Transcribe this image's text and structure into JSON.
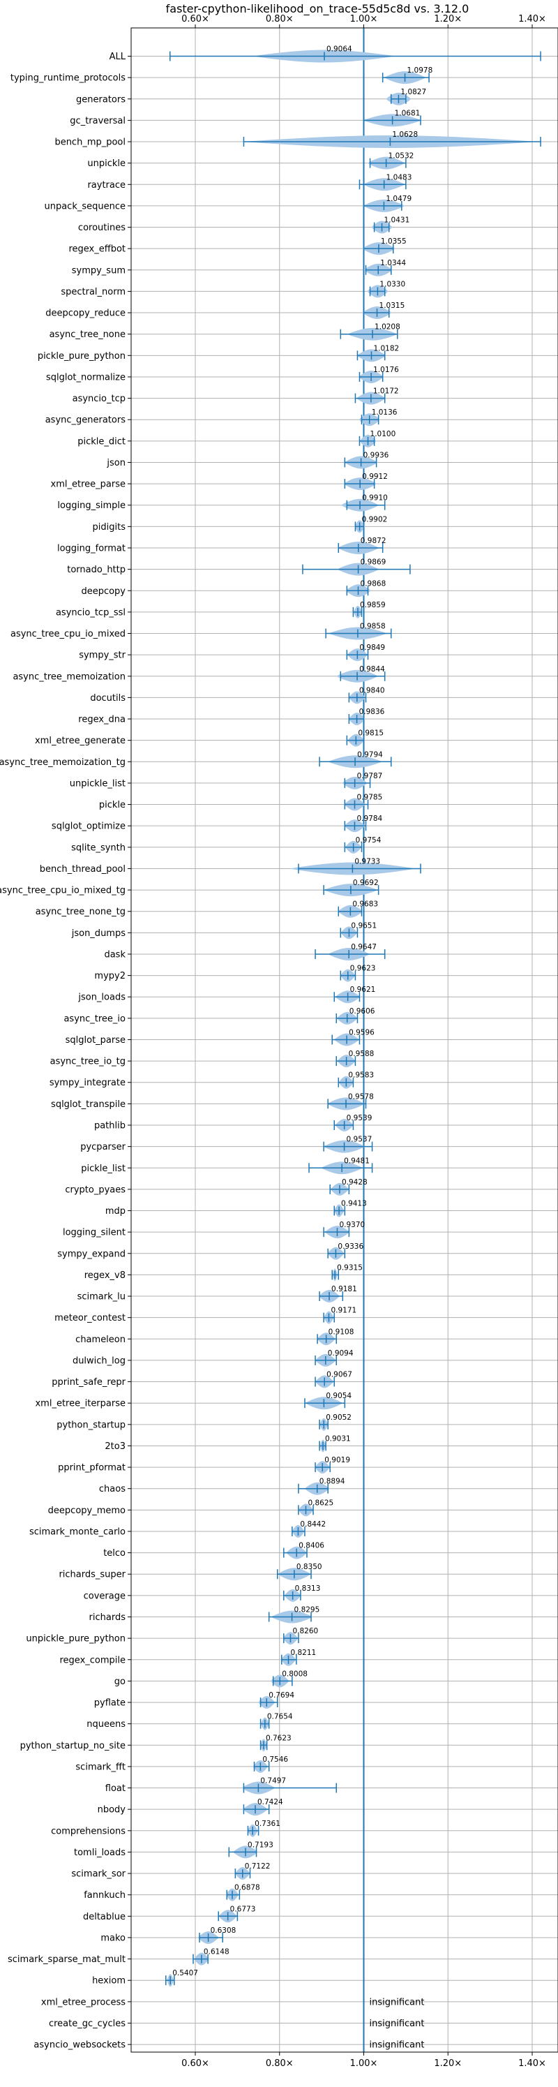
{
  "chart_data": {
    "type": "violin",
    "title": "faster-cpython-likelihood_on_trace-55d5c8d vs. 3.12.0",
    "xlabel": "",
    "ylabel": "",
    "xlim": [
      0.5,
      1.45
    ],
    "x_ticks": [
      0.6,
      0.8,
      1.0,
      1.2,
      1.4
    ],
    "x_tick_labels": [
      "0.60×",
      "0.80×",
      "1.00×",
      "1.20×",
      "1.40×"
    ],
    "x_tick_labels_top": [
      "0.60×",
      "0.80×",
      "1.00×",
      "1.20×",
      "1.40×"
    ],
    "reference_line": 1.0,
    "grid": true,
    "colors": {
      "line": "#1f77b4",
      "violin": "#a9c9e8",
      "grid": "#b0b0b0"
    },
    "insignificant_label": "insignificant",
    "benchmarks": [
      {
        "name": "ALL",
        "value": 0.9064,
        "label": "0.9064",
        "lo": 0.54,
        "hi": 1.42,
        "spread": 0.17
      },
      {
        "name": "typing_runtime_protocols",
        "value": 1.0978,
        "label": "1.0978",
        "lo": 1.045,
        "hi": 1.155,
        "spread": 0.05
      },
      {
        "name": "generators",
        "value": 1.0827,
        "label": "1.0827",
        "lo": 1.065,
        "hi": 1.1,
        "spread": 0.03
      },
      {
        "name": "gc_traversal",
        "value": 1.0681,
        "label": "1.0681",
        "lo": 1.0,
        "hi": 1.135,
        "spread": 0.07
      },
      {
        "name": "bench_mp_pool",
        "value": 1.0628,
        "label": "1.0628",
        "lo": 0.715,
        "hi": 1.42,
        "spread": 0.35
      },
      {
        "name": "unpickle",
        "value": 1.0532,
        "label": "1.0532",
        "lo": 1.015,
        "hi": 1.1,
        "spread": 0.045
      },
      {
        "name": "raytrace",
        "value": 1.0483,
        "label": "1.0483",
        "lo": 0.99,
        "hi": 1.1,
        "spread": 0.05
      },
      {
        "name": "unpack_sequence",
        "value": 1.0479,
        "label": "1.0479",
        "lo": 1.0,
        "hi": 1.09,
        "spread": 0.05
      },
      {
        "name": "coroutines",
        "value": 1.0431,
        "label": "1.0431",
        "lo": 1.025,
        "hi": 1.06,
        "spread": 0.025
      },
      {
        "name": "regex_effbot",
        "value": 1.0355,
        "label": "1.0355",
        "lo": 1.0,
        "hi": 1.07,
        "spread": 0.04
      },
      {
        "name": "sympy_sum",
        "value": 1.0344,
        "label": "1.0344",
        "lo": 1.005,
        "hi": 1.065,
        "spread": 0.035
      },
      {
        "name": "spectral_norm",
        "value": 1.033,
        "label": "1.0330",
        "lo": 1.015,
        "hi": 1.05,
        "spread": 0.025
      },
      {
        "name": "deepcopy_reduce",
        "value": 1.0315,
        "label": "1.0315",
        "lo": 1.0,
        "hi": 1.06,
        "spread": 0.035
      },
      {
        "name": "async_tree_none",
        "value": 1.0208,
        "label": "1.0208",
        "lo": 0.945,
        "hi": 1.08,
        "spread": 0.06
      },
      {
        "name": "pickle_pure_python",
        "value": 1.0182,
        "label": "1.0182",
        "lo": 0.985,
        "hi": 1.05,
        "spread": 0.035
      },
      {
        "name": "sqlglot_normalize",
        "value": 1.0176,
        "label": "1.0176",
        "lo": 0.99,
        "hi": 1.045,
        "spread": 0.03
      },
      {
        "name": "asyncio_tcp",
        "value": 1.0172,
        "label": "1.0172",
        "lo": 0.98,
        "hi": 1.05,
        "spread": 0.035
      },
      {
        "name": "async_generators",
        "value": 1.0136,
        "label": "1.0136",
        "lo": 0.995,
        "hi": 1.035,
        "spread": 0.025
      },
      {
        "name": "pickle_dict",
        "value": 1.01,
        "label": "1.0100",
        "lo": 0.99,
        "hi": 1.025,
        "spread": 0.02
      },
      {
        "name": "json",
        "value": 0.9936,
        "label": "0.9936",
        "lo": 0.955,
        "hi": 1.03,
        "spread": 0.04
      },
      {
        "name": "xml_etree_parse",
        "value": 0.9912,
        "label": "0.9912",
        "lo": 0.955,
        "hi": 1.025,
        "spread": 0.04
      },
      {
        "name": "logging_simple",
        "value": 0.991,
        "label": "0.9910",
        "lo": 0.96,
        "hi": 1.05,
        "spread": 0.045
      },
      {
        "name": "pidigits",
        "value": 0.9902,
        "label": "0.9902",
        "lo": 0.98,
        "hi": 1.0,
        "spread": 0.012
      },
      {
        "name": "logging_format",
        "value": 0.9872,
        "label": "0.9872",
        "lo": 0.94,
        "hi": 1.045,
        "spread": 0.05
      },
      {
        "name": "tornado_http",
        "value": 0.9869,
        "label": "0.9869",
        "lo": 0.855,
        "hi": 1.11,
        "spread": 0.05
      },
      {
        "name": "deepcopy",
        "value": 0.9868,
        "label": "0.9868",
        "lo": 0.96,
        "hi": 1.01,
        "spread": 0.03
      },
      {
        "name": "asyncio_tcp_ssl",
        "value": 0.9859,
        "label": "0.9859",
        "lo": 0.975,
        "hi": 0.995,
        "spread": 0.01
      },
      {
        "name": "async_tree_cpu_io_mixed",
        "value": 0.9858,
        "label": "0.9858",
        "lo": 0.91,
        "hi": 1.065,
        "spread": 0.07
      },
      {
        "name": "sympy_str",
        "value": 0.9849,
        "label": "0.9849",
        "lo": 0.96,
        "hi": 1.01,
        "spread": 0.025
      },
      {
        "name": "async_tree_memoization",
        "value": 0.9844,
        "label": "0.9844",
        "lo": 0.945,
        "hi": 1.05,
        "spread": 0.05
      },
      {
        "name": "docutils",
        "value": 0.984,
        "label": "0.9840",
        "lo": 0.965,
        "hi": 1.005,
        "spread": 0.02
      },
      {
        "name": "regex_dna",
        "value": 0.9836,
        "label": "0.9836",
        "lo": 0.965,
        "hi": 1.0,
        "spread": 0.02
      },
      {
        "name": "xml_etree_generate",
        "value": 0.9815,
        "label": "0.9815",
        "lo": 0.96,
        "hi": 1.0,
        "spread": 0.02
      },
      {
        "name": "async_tree_memoization_tg",
        "value": 0.9794,
        "label": "0.9794",
        "lo": 0.895,
        "hi": 1.065,
        "spread": 0.065
      },
      {
        "name": "unpickle_list",
        "value": 0.9787,
        "label": "0.9787",
        "lo": 0.955,
        "hi": 1.015,
        "spread": 0.03
      },
      {
        "name": "pickle",
        "value": 0.9785,
        "label": "0.9785",
        "lo": 0.955,
        "hi": 1.01,
        "spread": 0.025
      },
      {
        "name": "sqlglot_optimize",
        "value": 0.9784,
        "label": "0.9784",
        "lo": 0.955,
        "hi": 1.005,
        "spread": 0.025
      },
      {
        "name": "sqlite_synth",
        "value": 0.9754,
        "label": "0.9754",
        "lo": 0.955,
        "hi": 0.995,
        "spread": 0.02
      },
      {
        "name": "bench_thread_pool",
        "value": 0.9733,
        "label": "0.9733",
        "lo": 0.845,
        "hi": 1.135,
        "spread": 0.15
      },
      {
        "name": "async_tree_cpu_io_mixed_tg",
        "value": 0.9692,
        "label": "0.9692",
        "lo": 0.905,
        "hi": 1.035,
        "spread": 0.065
      },
      {
        "name": "async_tree_none_tg",
        "value": 0.9683,
        "label": "0.9683",
        "lo": 0.94,
        "hi": 0.995,
        "spread": 0.03
      },
      {
        "name": "json_dumps",
        "value": 0.9651,
        "label": "0.9651",
        "lo": 0.945,
        "hi": 0.985,
        "spread": 0.02
      },
      {
        "name": "dask",
        "value": 0.9647,
        "label": "0.9647",
        "lo": 0.885,
        "hi": 1.05,
        "spread": 0.05
      },
      {
        "name": "mypy2",
        "value": 0.9623,
        "label": "0.9623",
        "lo": 0.945,
        "hi": 0.98,
        "spread": 0.018
      },
      {
        "name": "json_loads",
        "value": 0.9621,
        "label": "0.9621",
        "lo": 0.93,
        "hi": 0.99,
        "spread": 0.03
      },
      {
        "name": "async_tree_io",
        "value": 0.9606,
        "label": "0.9606",
        "lo": 0.935,
        "hi": 0.985,
        "spread": 0.025
      },
      {
        "name": "sqlglot_parse",
        "value": 0.9596,
        "label": "0.9596",
        "lo": 0.925,
        "hi": 0.99,
        "spread": 0.03
      },
      {
        "name": "async_tree_io_tg",
        "value": 0.9588,
        "label": "0.9588",
        "lo": 0.935,
        "hi": 0.98,
        "spread": 0.022
      },
      {
        "name": "sympy_integrate",
        "value": 0.9583,
        "label": "0.9583",
        "lo": 0.94,
        "hi": 0.975,
        "spread": 0.018
      },
      {
        "name": "sqlglot_transpile",
        "value": 0.9578,
        "label": "0.9578",
        "lo": 0.915,
        "hi": 1.005,
        "spread": 0.045
      },
      {
        "name": "pathlib",
        "value": 0.9539,
        "label": "0.9539",
        "lo": 0.93,
        "hi": 0.975,
        "spread": 0.022
      },
      {
        "name": "pycparser",
        "value": 0.9537,
        "label": "0.9537",
        "lo": 0.905,
        "hi": 1.02,
        "spread": 0.05
      },
      {
        "name": "pickle_list",
        "value": 0.9481,
        "label": "0.9481",
        "lo": 0.87,
        "hi": 1.02,
        "spread": 0.05
      },
      {
        "name": "crypto_pyaes",
        "value": 0.9428,
        "label": "0.9428",
        "lo": 0.92,
        "hi": 0.965,
        "spread": 0.022
      },
      {
        "name": "mdp",
        "value": 0.9413,
        "label": "0.9413",
        "lo": 0.93,
        "hi": 0.955,
        "spread": 0.012
      },
      {
        "name": "logging_silent",
        "value": 0.937,
        "label": "0.9370",
        "lo": 0.905,
        "hi": 0.965,
        "spread": 0.03
      },
      {
        "name": "sympy_expand",
        "value": 0.9336,
        "label": "0.9336",
        "lo": 0.915,
        "hi": 0.955,
        "spread": 0.02
      },
      {
        "name": "regex_v8",
        "value": 0.9315,
        "label": "0.9315",
        "lo": 0.925,
        "hi": 0.94,
        "spread": 0.006
      },
      {
        "name": "scimark_lu",
        "value": 0.9181,
        "label": "0.9181",
        "lo": 0.895,
        "hi": 0.95,
        "spread": 0.025
      },
      {
        "name": "meteor_contest",
        "value": 0.9171,
        "label": "0.9171",
        "lo": 0.905,
        "hi": 0.93,
        "spread": 0.012
      },
      {
        "name": "chameleon",
        "value": 0.9108,
        "label": "0.9108",
        "lo": 0.89,
        "hi": 0.935,
        "spread": 0.022
      },
      {
        "name": "dulwich_log",
        "value": 0.9094,
        "label": "0.9094",
        "lo": 0.885,
        "hi": 0.935,
        "spread": 0.025
      },
      {
        "name": "pprint_safe_repr",
        "value": 0.9067,
        "label": "0.9067",
        "lo": 0.885,
        "hi": 0.93,
        "spread": 0.022
      },
      {
        "name": "xml_etree_iterparse",
        "value": 0.9054,
        "label": "0.9054",
        "lo": 0.86,
        "hi": 0.955,
        "spread": 0.045
      },
      {
        "name": "python_startup",
        "value": 0.9052,
        "label": "0.9052",
        "lo": 0.895,
        "hi": 0.915,
        "spread": 0.01
      },
      {
        "name": "2to3",
        "value": 0.9031,
        "label": "0.9031",
        "lo": 0.895,
        "hi": 0.91,
        "spread": 0.007
      },
      {
        "name": "pprint_pformat",
        "value": 0.9019,
        "label": "0.9019",
        "lo": 0.885,
        "hi": 0.92,
        "spread": 0.018
      },
      {
        "name": "chaos",
        "value": 0.8894,
        "label": "0.8894",
        "lo": 0.845,
        "hi": 0.915,
        "spread": 0.03
      },
      {
        "name": "deepcopy_memo",
        "value": 0.8625,
        "label": "0.8625",
        "lo": 0.845,
        "hi": 0.88,
        "spread": 0.018
      },
      {
        "name": "scimark_monte_carlo",
        "value": 0.8442,
        "label": "0.8442",
        "lo": 0.83,
        "hi": 0.86,
        "spread": 0.015
      },
      {
        "name": "telco",
        "value": 0.8406,
        "label": "0.8406",
        "lo": 0.81,
        "hi": 0.865,
        "spread": 0.025
      },
      {
        "name": "richards_super",
        "value": 0.835,
        "label": "0.8350",
        "lo": 0.795,
        "hi": 0.875,
        "spread": 0.04
      },
      {
        "name": "coverage",
        "value": 0.8313,
        "label": "0.8313",
        "lo": 0.81,
        "hi": 0.85,
        "spread": 0.02
      },
      {
        "name": "richards",
        "value": 0.8295,
        "label": "0.8295",
        "lo": 0.775,
        "hi": 0.875,
        "spread": 0.05
      },
      {
        "name": "unpickle_pure_python",
        "value": 0.826,
        "label": "0.8260",
        "lo": 0.81,
        "hi": 0.845,
        "spread": 0.018
      },
      {
        "name": "regex_compile",
        "value": 0.8211,
        "label": "0.8211",
        "lo": 0.805,
        "hi": 0.84,
        "spread": 0.018
      },
      {
        "name": "go",
        "value": 0.8008,
        "label": "0.8008",
        "lo": 0.785,
        "hi": 0.83,
        "spread": 0.022
      },
      {
        "name": "pyflate",
        "value": 0.7694,
        "label": "0.7694",
        "lo": 0.755,
        "hi": 0.795,
        "spread": 0.02
      },
      {
        "name": "nqueens",
        "value": 0.7654,
        "label": "0.7654",
        "lo": 0.755,
        "hi": 0.775,
        "spread": 0.01
      },
      {
        "name": "python_startup_no_site",
        "value": 0.7623,
        "label": "0.7623",
        "lo": 0.755,
        "hi": 0.77,
        "spread": 0.008
      },
      {
        "name": "scimark_fft",
        "value": 0.7546,
        "label": "0.7546",
        "lo": 0.74,
        "hi": 0.775,
        "spread": 0.018
      },
      {
        "name": "float",
        "value": 0.7497,
        "label": "0.7497",
        "lo": 0.715,
        "hi": 0.935,
        "spread": 0.04
      },
      {
        "name": "nbody",
        "value": 0.7424,
        "label": "0.7424",
        "lo": 0.715,
        "hi": 0.775,
        "spread": 0.03
      },
      {
        "name": "comprehensions",
        "value": 0.7361,
        "label": "0.7361",
        "lo": 0.725,
        "hi": 0.75,
        "spread": 0.012
      },
      {
        "name": "tomli_loads",
        "value": 0.7193,
        "label": "0.7193",
        "lo": 0.68,
        "hi": 0.745,
        "spread": 0.03
      },
      {
        "name": "scimark_sor",
        "value": 0.7122,
        "label": "0.7122",
        "lo": 0.695,
        "hi": 0.73,
        "spread": 0.018
      },
      {
        "name": "fannkuch",
        "value": 0.6878,
        "label": "0.6878",
        "lo": 0.675,
        "hi": 0.705,
        "spread": 0.015
      },
      {
        "name": "deltablue",
        "value": 0.6773,
        "label": "0.6773",
        "lo": 0.655,
        "hi": 0.7,
        "spread": 0.022
      },
      {
        "name": "mako",
        "value": 0.6308,
        "label": "0.6308",
        "lo": 0.61,
        "hi": 0.665,
        "spread": 0.025
      },
      {
        "name": "scimark_sparse_mat_mult",
        "value": 0.6148,
        "label": "0.6148",
        "lo": 0.595,
        "hi": 0.63,
        "spread": 0.018
      },
      {
        "name": "hexiom",
        "value": 0.5407,
        "label": "0.5407",
        "lo": 0.53,
        "hi": 0.55,
        "spread": 0.008
      },
      {
        "name": "xml_etree_process",
        "value": null,
        "label": "",
        "insignificant": true
      },
      {
        "name": "create_gc_cycles",
        "value": null,
        "label": "",
        "insignificant": true
      },
      {
        "name": "asyncio_websockets",
        "value": null,
        "label": "",
        "insignificant": true
      }
    ]
  }
}
